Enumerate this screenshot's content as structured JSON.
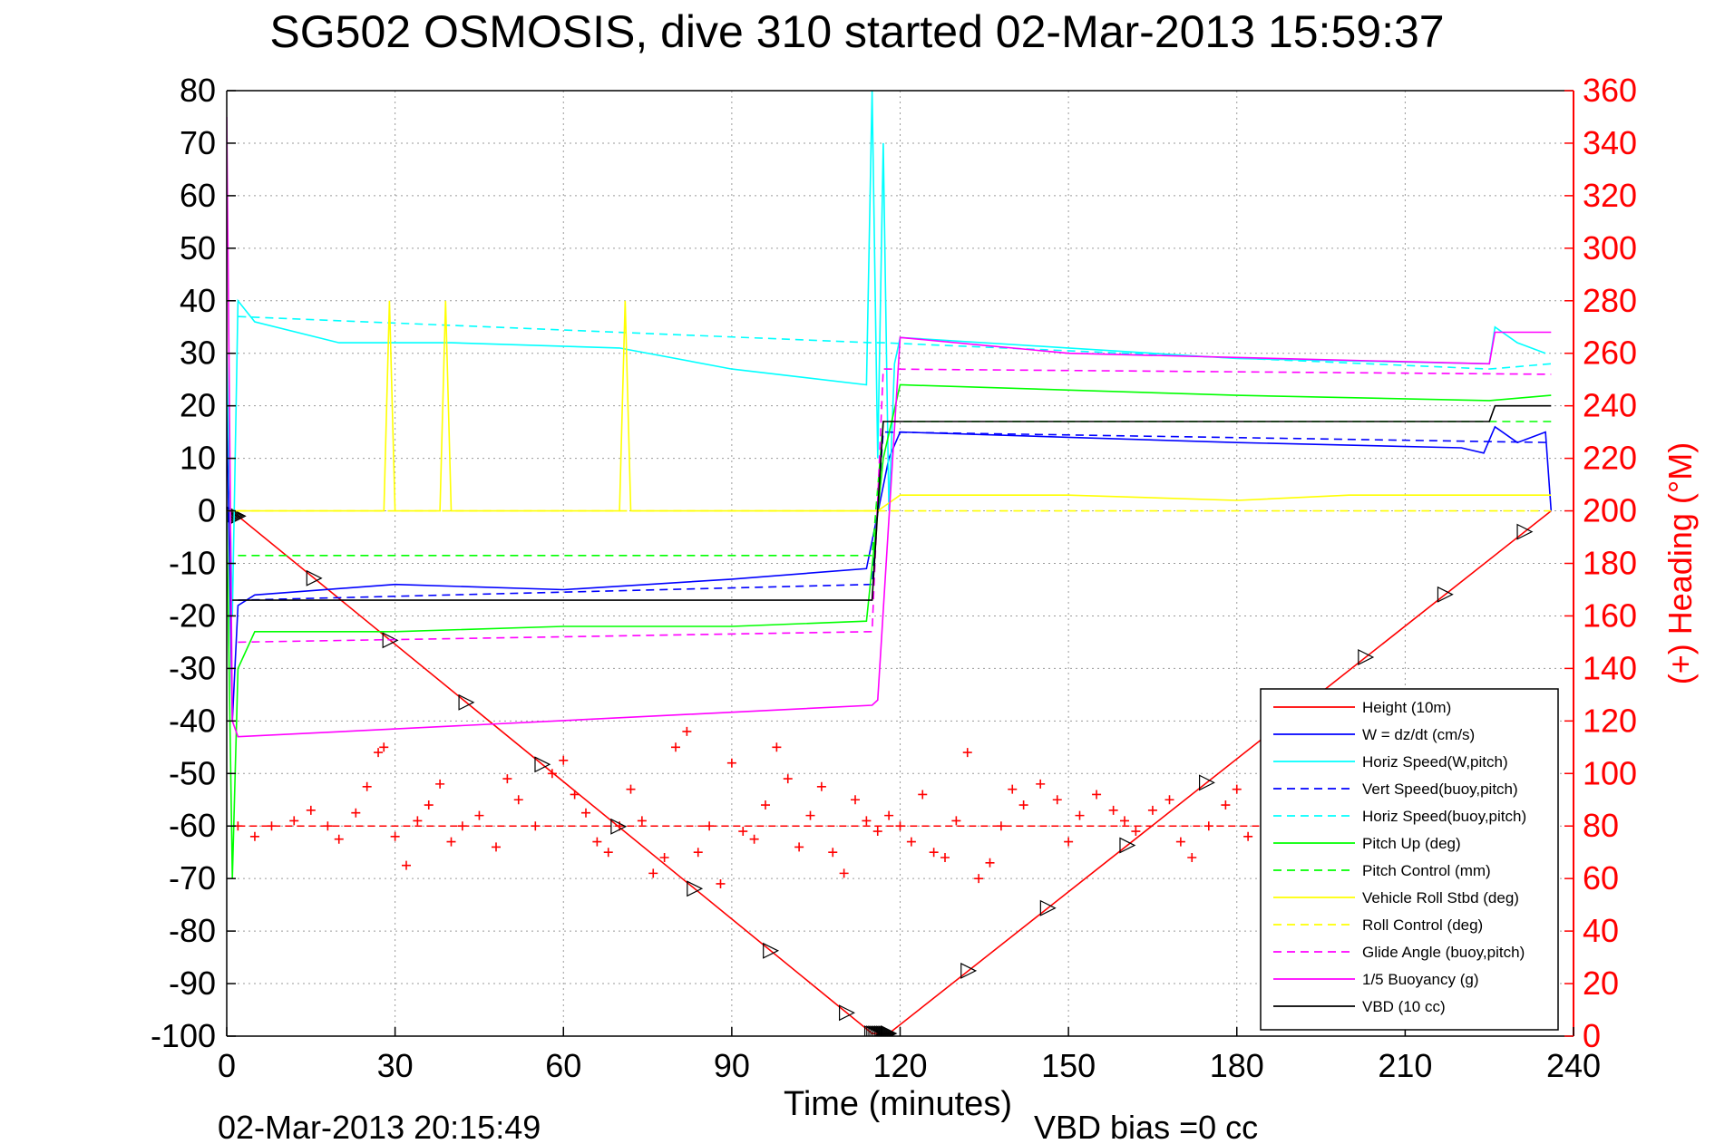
{
  "chart_data": {
    "type": "line",
    "title": "SG502 OSMOSIS, dive 310 started 02-Mar-2013 15:59:37",
    "xlabel": "Time (minutes)",
    "ylabel_right": "(+) Heading (°M)",
    "footer_left": "02-Mar-2013 20:15:49",
    "footer_right": "VBD bias =0 cc",
    "xlim": [
      0,
      240
    ],
    "ylim_left": [
      -100,
      80
    ],
    "ylim_right": [
      0,
      360
    ],
    "x_ticks": [
      "0",
      "30",
      "60",
      "90",
      "120",
      "150",
      "180",
      "210",
      "240"
    ],
    "y_ticks_left": [
      "80",
      "70",
      "60",
      "50",
      "40",
      "30",
      "20",
      "10",
      "0",
      "-10",
      "-20",
      "-30",
      "-40",
      "-50",
      "-60",
      "-70",
      "-80",
      "-90",
      "-100"
    ],
    "y_ticks_right": [
      "360",
      "340",
      "320",
      "300",
      "280",
      "260",
      "240",
      "220",
      "200",
      "180",
      "160",
      "140",
      "120",
      "100",
      "80",
      "60",
      "40",
      "20",
      "0"
    ],
    "grid": true,
    "legend_position": "bottom-right",
    "colors": {
      "height": "#ff0000",
      "w": "#0000ff",
      "horiz_speed": "#00ffff",
      "vert_speed_buoy": "#0000ff",
      "horiz_speed_buoy": "#00ffff",
      "pitch_up": "#00ff00",
      "pitch_control": "#00ff00",
      "roll": "#ffff00",
      "roll_control": "#ffff00",
      "glide_angle": "#ff00ff",
      "buoyancy": "#ff00ff",
      "vbd": "#000000",
      "heading": "#ff0000",
      "right_axis": "#ff0000"
    },
    "series": [
      {
        "name": "Height (10m)",
        "style": "solid",
        "color": "#ff0000",
        "x": [
          0,
          2,
          115,
          118,
          236
        ],
        "y": [
          0,
          -1,
          -99.5,
          -99.5,
          0
        ]
      },
      {
        "name": "W = dz/dt (cm/s)",
        "style": "solid",
        "color": "#0000ff",
        "x": [
          0,
          1,
          2,
          5,
          30,
          60,
          90,
          114,
          118,
          120,
          150,
          180,
          220,
          224,
          226,
          230,
          235,
          236
        ],
        "y": [
          20,
          -40,
          -18,
          -16,
          -14,
          -15,
          -13,
          -11,
          10,
          15,
          14,
          13,
          12,
          11,
          16,
          13,
          15,
          0
        ]
      },
      {
        "name": "Horiz Speed(W,pitch)",
        "style": "solid",
        "color": "#00ffff",
        "x": [
          0,
          1,
          2,
          5,
          20,
          40,
          70,
          90,
          114,
          115,
          116,
          117,
          118,
          119,
          120,
          150,
          180,
          225,
          226,
          230,
          235
        ],
        "y": [
          30,
          -20,
          40,
          36,
          32,
          32,
          31,
          27,
          24,
          80,
          10,
          70,
          0,
          28,
          33,
          31,
          29,
          28,
          35,
          32,
          30
        ]
      },
      {
        "name": "Vert Speed(buoy,pitch)",
        "style": "dashed",
        "color": "#0000ff",
        "x": [
          2,
          115,
          117,
          236
        ],
        "y": [
          -17,
          -14,
          15,
          13
        ]
      },
      {
        "name": "Horiz Speed(buoy,pitch)",
        "style": "dashed",
        "color": "#00ffff",
        "x": [
          2,
          115,
          117,
          225,
          236
        ],
        "y": [
          37,
          32,
          32,
          27,
          28
        ]
      },
      {
        "name": "Pitch Up (deg)",
        "style": "solid",
        "color": "#00ff00",
        "x": [
          0,
          1,
          2,
          5,
          30,
          60,
          90,
          114,
          117,
          120,
          150,
          180,
          225,
          236
        ],
        "y": [
          0,
          -70,
          -30,
          -23,
          -23,
          -22,
          -22,
          -21,
          10,
          24,
          23,
          22,
          21,
          22
        ]
      },
      {
        "name": "Pitch Control (mm)",
        "style": "dashed",
        "color": "#00ff00",
        "x": [
          2,
          115,
          117,
          236
        ],
        "y": [
          -8.5,
          -8.5,
          17,
          17
        ]
      },
      {
        "name": "Vehicle Roll Stbd (deg)",
        "style": "solid",
        "color": "#ffff00",
        "x": [
          0,
          2,
          28,
          29,
          30,
          38,
          39,
          40,
          60,
          70,
          71,
          72,
          114,
          116,
          120,
          150,
          180,
          200,
          236
        ],
        "y": [
          0,
          0,
          0,
          40,
          0,
          0,
          40,
          0,
          0,
          0,
          40,
          0,
          0,
          0,
          3,
          3,
          2,
          3,
          3
        ]
      },
      {
        "name": "Roll Control (deg)",
        "style": "dashed",
        "color": "#ffff00",
        "x": [
          2,
          115,
          117,
          236
        ],
        "y": [
          0,
          0,
          0,
          0
        ]
      },
      {
        "name": "Glide Angle (buoy,pitch)",
        "style": "dashed",
        "color": "#ff00ff",
        "x": [
          2,
          115,
          117,
          236
        ],
        "y": [
          -25,
          -23,
          27,
          26
        ]
      },
      {
        "name": "1/5 Buoyancy (g)",
        "style": "solid",
        "color": "#ff00ff",
        "x": [
          0,
          1,
          2,
          115,
          116,
          120,
          150,
          225,
          226,
          236
        ],
        "y": [
          75,
          -40,
          -43,
          -37,
          -36,
          33,
          30,
          28,
          34,
          34
        ]
      },
      {
        "name": "VBD (10 cc)",
        "style": "solid",
        "color": "#000000",
        "x": [
          1,
          2,
          115,
          117,
          120,
          225,
          226,
          236
        ],
        "y": [
          -17,
          -17,
          -17,
          17,
          17,
          17,
          20,
          20
        ]
      }
    ],
    "heading_series": {
      "style": "plus-markers",
      "color": "#ff0000",
      "target_heading": 80,
      "x": [
        2,
        5,
        8,
        12,
        15,
        18,
        20,
        23,
        25,
        27,
        28,
        30,
        32,
        34,
        36,
        38,
        40,
        42,
        45,
        48,
        50,
        52,
        55,
        58,
        60,
        62,
        64,
        66,
        68,
        70,
        72,
        74,
        76,
        78,
        80,
        82,
        84,
        86,
        88,
        90,
        92,
        94,
        96,
        98,
        100,
        102,
        104,
        106,
        108,
        110,
        112,
        114,
        116,
        118,
        120,
        122,
        124,
        126,
        128,
        130,
        132,
        134,
        136,
        138,
        140,
        142,
        145,
        148,
        150,
        152,
        155,
        158,
        160,
        162,
        165,
        168,
        170,
        172,
        175,
        178,
        180,
        182,
        185,
        188,
        190,
        192,
        195,
        198,
        200,
        202,
        205,
        208,
        210,
        212,
        215,
        218,
        220,
        222,
        225,
        228,
        230,
        232,
        235
      ],
      "y": [
        80,
        76,
        80,
        82,
        86,
        80,
        75,
        85,
        95,
        108,
        110,
        76,
        65,
        82,
        88,
        96,
        74,
        80,
        84,
        72,
        98,
        90,
        80,
        100,
        105,
        92,
        85,
        74,
        70,
        80,
        94,
        82,
        62,
        68,
        110,
        116,
        70,
        80,
        58,
        104,
        78,
        75,
        88,
        110,
        98,
        72,
        84,
        95,
        70,
        62,
        90,
        82,
        78,
        84,
        80,
        74,
        92,
        70,
        68,
        82,
        108,
        60,
        66,
        80,
        94,
        88,
        96,
        90,
        74,
        84,
        92,
        86,
        82,
        78,
        86,
        90,
        74,
        68,
        80,
        88,
        94,
        76,
        70,
        82,
        90,
        86,
        80,
        72,
        90,
        96,
        84,
        82,
        98,
        104,
        80,
        76,
        72,
        86,
        90,
        70,
        80,
        82,
        78
      ]
    }
  }
}
